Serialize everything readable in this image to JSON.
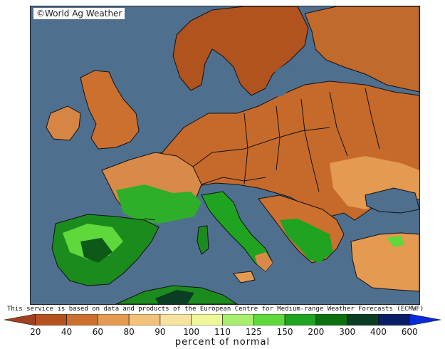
{
  "watermark": "©World Ag Weather",
  "source_note": "This service is based on data and products of the European Centre for Medium-range Weather Forecasts (ECMWF)",
  "legend": {
    "title": "percent of normal",
    "bins": [
      {
        "color": "#a0401f"
      },
      {
        "color": "#b5521f"
      },
      {
        "color": "#cc7030"
      },
      {
        "color": "#e49a50"
      },
      {
        "color": "#f2c27a"
      },
      {
        "color": "#f6e3a0"
      },
      {
        "color": "#eef89a"
      },
      {
        "color": "#a9ee6f"
      },
      {
        "color": "#5fd83b"
      },
      {
        "color": "#1fa320"
      },
      {
        "color": "#0d7010"
      },
      {
        "color": "#0a3d24"
      },
      {
        "color": "#0a1f66"
      },
      {
        "color": "#0a2bd8"
      }
    ],
    "ticks": [
      "20",
      "40",
      "60",
      "80",
      "90",
      "100",
      "110",
      "125",
      "150",
      "200",
      "300",
      "400",
      "600"
    ]
  }
}
